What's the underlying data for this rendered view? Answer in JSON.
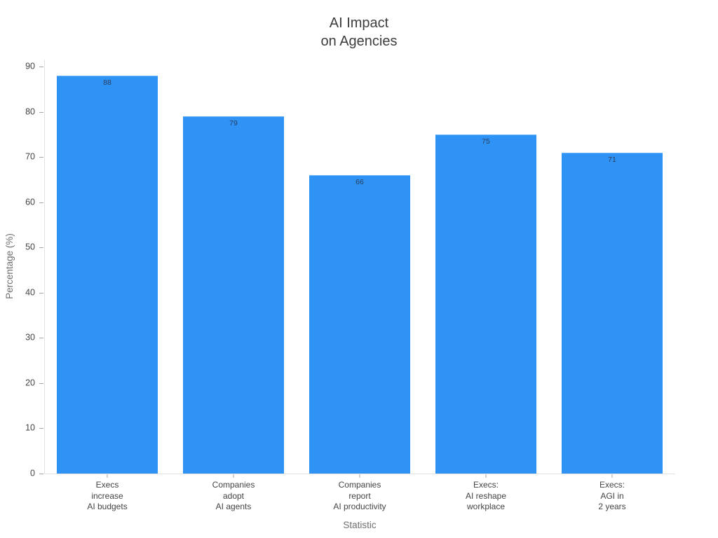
{
  "page": {
    "background": "#ffffff"
  },
  "chart_data": {
    "type": "bar",
    "title": "AI Impact\non Agencies",
    "xlabel": "Statistic",
    "ylabel": "Percentage (%)",
    "categories": [
      "Execs\nincrease\nAI budgets",
      "Companies\nadopt\nAI agents",
      "Companies\nreport\nAI productivity",
      "Execs:\nAI reshape\nworkplace",
      "Execs:\nAGI in\n2 years"
    ],
    "values": [
      88,
      79,
      66,
      75,
      71
    ],
    "yticks": [
      0,
      10,
      20,
      30,
      40,
      50,
      60,
      70,
      80,
      90
    ],
    "ylim": [
      0,
      91.6
    ],
    "grid": false,
    "legend": "none",
    "bar_color": "#2f92f5",
    "value_label_color": "#2a3f5f",
    "axis_line_color": "#e2e2e2",
    "tick_color": "#a5a5a5",
    "tick_label_color": "#444444",
    "axis_title_color": "#6f6f6f",
    "title_color": "#3d3d3d"
  }
}
